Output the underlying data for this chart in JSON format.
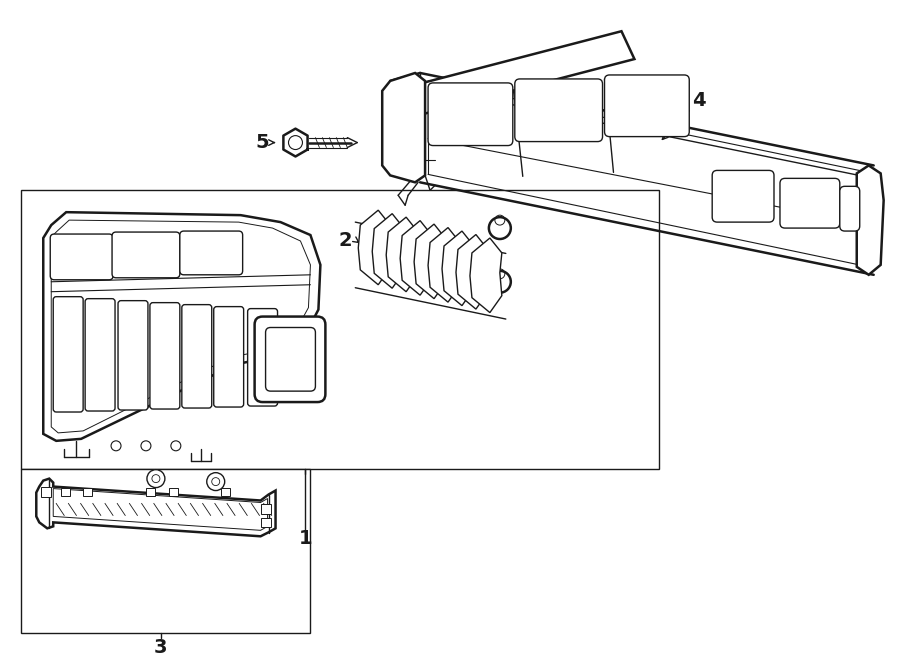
{
  "bg_color": "#ffffff",
  "line_color": "#1a1a1a",
  "fig_width": 9.0,
  "fig_height": 6.61,
  "dpi": 100,
  "lw": 1.0,
  "lw2": 1.8,
  "lw3": 2.2
}
